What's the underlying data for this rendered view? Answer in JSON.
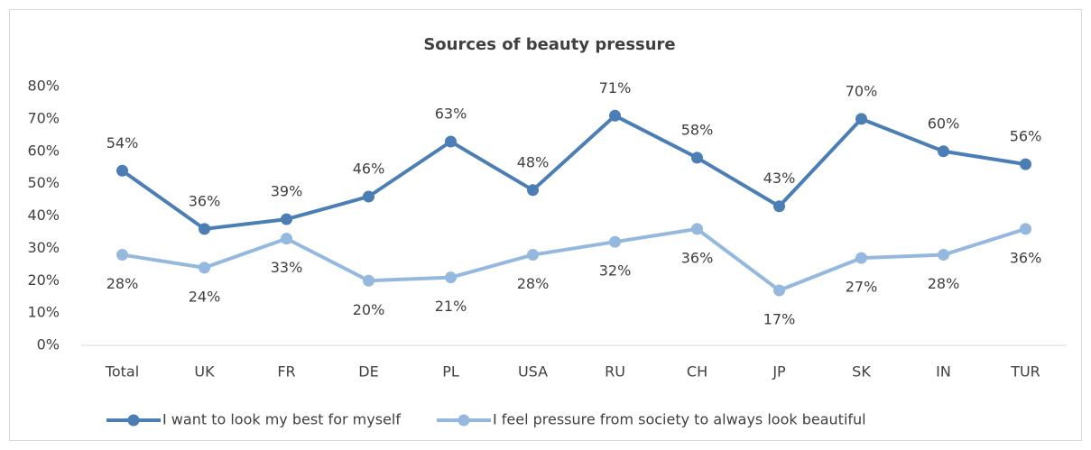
{
  "chart_data": {
    "type": "line",
    "title": "Sources of beauty pressure",
    "categories": [
      "Total",
      "UK",
      "FR",
      "DE",
      "PL",
      "USA",
      "RU",
      "CH",
      "JP",
      "SK",
      "IN",
      "TUR"
    ],
    "series": [
      {
        "name": "I want to look my best for myself",
        "color": "#4a7eb5",
        "values": [
          54,
          36,
          39,
          46,
          63,
          48,
          71,
          58,
          43,
          70,
          60,
          56
        ],
        "value_labels": [
          "54%",
          "36%",
          "39%",
          "46%",
          "63%",
          "48%",
          "71%",
          "58%",
          "43%",
          "70%",
          "60%",
          "56%"
        ]
      },
      {
        "name": "I feel pressure from society to always look beautiful",
        "color": "#95b8df",
        "values": [
          28,
          24,
          33,
          20,
          21,
          28,
          32,
          36,
          17,
          27,
          28,
          36
        ],
        "value_labels": [
          "28%",
          "24%",
          "33%",
          "20%",
          "21%",
          "28%",
          "32%",
          "36%",
          "17%",
          "27%",
          "28%",
          "36%"
        ]
      }
    ],
    "ylim": [
      0,
      80
    ],
    "yticks": [
      {
        "value": 0,
        "label": "0%"
      },
      {
        "value": 10,
        "label": "10%"
      },
      {
        "value": 20,
        "label": "20%"
      },
      {
        "value": 30,
        "label": "30%"
      },
      {
        "value": 40,
        "label": "40%"
      },
      {
        "value": 50,
        "label": "50%"
      },
      {
        "value": 60,
        "label": "60%"
      },
      {
        "value": 70,
        "label": "70%"
      },
      {
        "value": 80,
        "label": "80%"
      }
    ],
    "legend": "bottom"
  }
}
